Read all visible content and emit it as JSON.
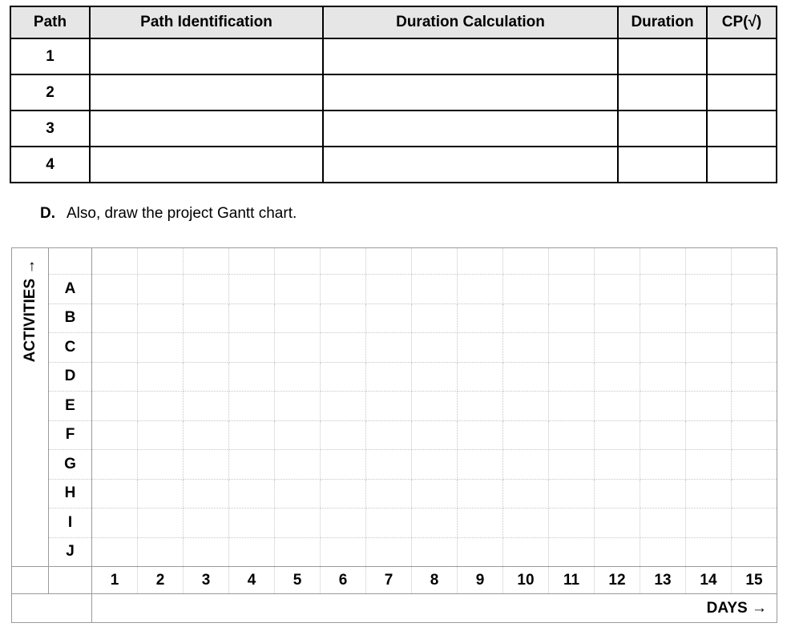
{
  "path_table": {
    "headers": [
      "Path",
      "Path Identification",
      "Duration Calculation",
      "Duration",
      "CP(√)"
    ],
    "rows": [
      "1",
      "2",
      "3",
      "4"
    ]
  },
  "prompt": {
    "label": "D.",
    "text": "Also, draw the project Gantt chart."
  },
  "gantt": {
    "y_axis_label": "ACTIVITIES →",
    "x_axis_label": "DAYS →",
    "activities": [
      "A",
      "B",
      "C",
      "D",
      "E",
      "F",
      "G",
      "H",
      "I",
      "J"
    ],
    "days": [
      "1",
      "2",
      "3",
      "4",
      "5",
      "6",
      "7",
      "8",
      "9",
      "10",
      "11",
      "12",
      "13",
      "14",
      "15"
    ]
  },
  "colors": {
    "header_bg": "#e6e6e6",
    "table_border": "#000000",
    "gantt_solid_line": "#9a9a9a",
    "gantt_dotted_line": "#c6c6c6"
  }
}
